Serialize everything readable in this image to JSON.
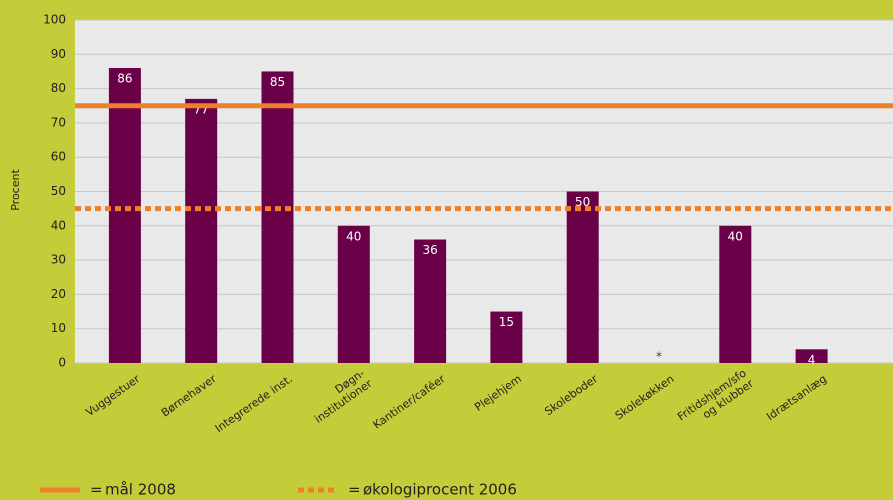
{
  "chart_data": {
    "type": "bar",
    "y_label": "Procent",
    "categories": [
      "Vuggestuer",
      "Børnehaver",
      "Integrerede inst.",
      "Døgn-\ninstitutioner",
      "Kantiner/caféer",
      "Plejehjem",
      "Skoleboder",
      "Skolekøkken",
      "Fritidshjem/sfo\nog klubber",
      "Idrætsanlæg"
    ],
    "values": [
      86,
      77,
      85,
      40,
      36,
      15,
      50,
      null,
      40,
      4
    ],
    "value_labels": [
      "86",
      "77",
      "85",
      "40",
      "36",
      "15",
      "50",
      "*",
      "40",
      "4"
    ],
    "color": "#6a0047",
    "ylim": [
      0,
      100
    ],
    "yticks": [
      0,
      10,
      20,
      30,
      40,
      50,
      60,
      70,
      80,
      90,
      100
    ],
    "grid": true,
    "legend_separator": "=",
    "reference_lines": [
      {
        "name": "mål 2008",
        "value": 75,
        "color": "#f07f2a",
        "style": "solid"
      },
      {
        "name": "økologiprocent 2006",
        "value": 45,
        "color": "#f07f2a",
        "style": "dotted"
      }
    ]
  }
}
